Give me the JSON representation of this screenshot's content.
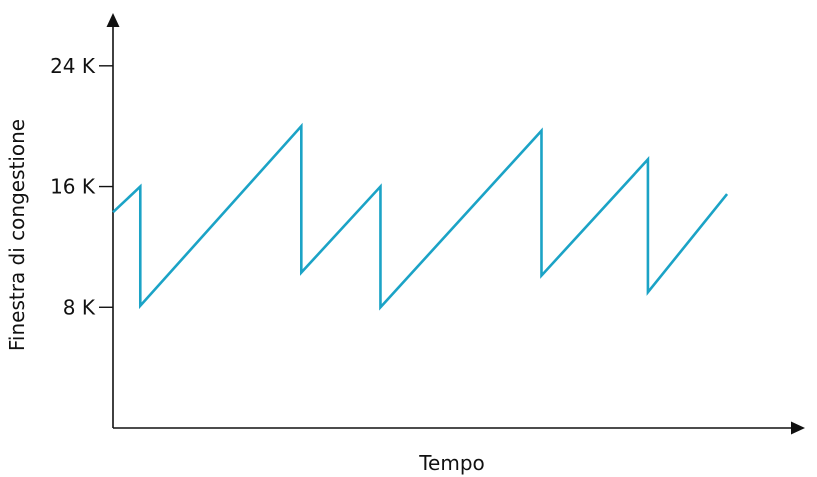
{
  "chart_data": {
    "type": "line",
    "xlabel": "Tempo",
    "ylabel": "Finestra di congestione",
    "ylim": [
      0,
      27.5
    ],
    "xlim": [
      0,
      24
    ],
    "y_ticks": [
      {
        "value": 8,
        "label": "8 K"
      },
      {
        "value": 16,
        "label": "16 K"
      },
      {
        "value": 24,
        "label": "24 K"
      }
    ],
    "grid": false,
    "legend": "none",
    "colors": {
      "series": "#1ba3c6",
      "axis": "#111111"
    },
    "series": [
      {
        "x": [
          0,
          1,
          1,
          6.9,
          6.9,
          9.8,
          9.8,
          15.7,
          15.7,
          19.6,
          19.6,
          22.5
        ],
        "y": [
          14.3,
          16,
          8.1,
          20,
          10.3,
          16,
          8,
          19.7,
          10.1,
          17.8,
          9,
          15.5
        ]
      }
    ]
  }
}
